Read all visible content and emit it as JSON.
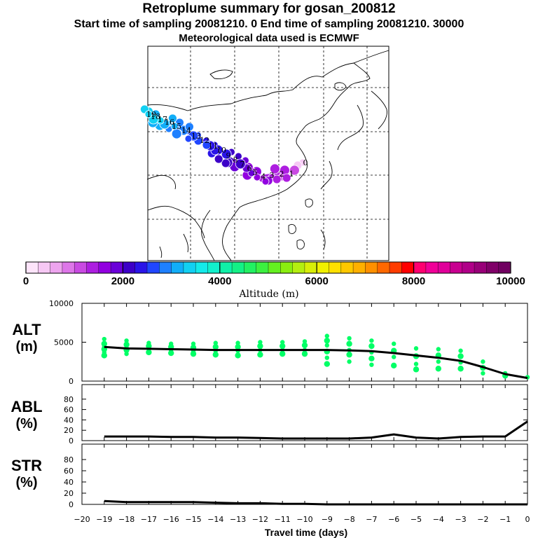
{
  "header": {
    "title": "Retroplume summary for gosan_200812",
    "sampling": "Start time of sampling 20081210.      0      End time of sampling 20081210. 30000",
    "met": "Meteorological data used is ECMWF"
  },
  "colorbar": {
    "label": "Altitude (m)",
    "ticks": [
      "0",
      "2000",
      "4000",
      "6000",
      "8000",
      "10000"
    ],
    "colors": [
      "#fde4fa",
      "#f6c8f4",
      "#eda4ee",
      "#dd76e8",
      "#c94ae2",
      "#ad1ee0",
      "#9200e0",
      "#6a00d8",
      "#3c00c8",
      "#2a14e8",
      "#2046ff",
      "#1e80ff",
      "#12aef8",
      "#12d0f2",
      "#14eaea",
      "#12f0cc",
      "#10f0a8",
      "#14f086",
      "#22f062",
      "#3cf040",
      "#64f020",
      "#8aee10",
      "#b4ee10",
      "#d8ee08",
      "#f0f000",
      "#ffe000",
      "#ffc800",
      "#ffb000",
      "#ff9000",
      "#ff6800",
      "#ff3c00",
      "#ff0000",
      "#ff0070",
      "#f00098",
      "#e0009a",
      "#c80090",
      "#b00088",
      "#980078",
      "#800068",
      "#700060"
    ],
    "nominal_color": "#00ff66"
  },
  "map": {
    "trajectory_labels": [
      "0",
      "1",
      "2",
      "3",
      "4",
      "5",
      "6",
      "7",
      "8",
      "9",
      "10",
      "11",
      "12",
      "13",
      "14",
      "15",
      "16",
      "17",
      "18",
      "19"
    ]
  },
  "chart_data": [
    {
      "type": "line",
      "name": "ALT",
      "ylabel": "ALT",
      "yunit": "(m)",
      "ylim": [
        0,
        10000
      ],
      "yticks": [
        "0",
        "5000",
        "10000"
      ],
      "x": [
        -19,
        -18,
        -17,
        -16,
        -15,
        -14,
        -13,
        -12,
        -11,
        -10,
        -9,
        -8,
        -7,
        -6,
        -5,
        -4,
        -3,
        -2,
        -1,
        0
      ],
      "series": [
        {
          "name": "mean altitude",
          "values": [
            4400,
            4200,
            4150,
            4100,
            4050,
            4000,
            4000,
            4000,
            4000,
            4000,
            4000,
            3950,
            3850,
            3600,
            3300,
            3000,
            2600,
            1800,
            900,
            400
          ]
        }
      ],
      "scatter_clusters": [
        {
          "x": -19,
          "values": [
            5400,
            4800,
            4400,
            4100,
            3700,
            3300
          ]
        },
        {
          "x": -18,
          "values": [
            5200,
            4700,
            4300,
            4000,
            3500
          ]
        },
        {
          "x": -17,
          "values": [
            4900,
            4500,
            4100,
            3700
          ]
        },
        {
          "x": -16,
          "values": [
            4800,
            4400,
            4000,
            3600
          ]
        },
        {
          "x": -15,
          "values": [
            4800,
            4300,
            3900,
            3500
          ]
        },
        {
          "x": -14,
          "values": [
            4900,
            4400,
            3900,
            3400
          ]
        },
        {
          "x": -13,
          "values": [
            4900,
            4400,
            3900,
            3300
          ]
        },
        {
          "x": -12,
          "values": [
            5000,
            4500,
            4000,
            3400
          ]
        },
        {
          "x": -11,
          "values": [
            5000,
            4500,
            4000,
            3500
          ]
        },
        {
          "x": -10,
          "values": [
            5100,
            4600,
            4000,
            3500
          ]
        },
        {
          "x": -9,
          "values": [
            5800,
            5200,
            4600,
            3800,
            3000,
            2200
          ]
        },
        {
          "x": -8,
          "values": [
            5500,
            4800,
            4000,
            3400,
            2500
          ]
        },
        {
          "x": -7,
          "values": [
            5200,
            4500,
            3700,
            2900,
            2100
          ]
        },
        {
          "x": -6,
          "values": [
            4800,
            3900,
            3100,
            2000
          ]
        },
        {
          "x": -5,
          "values": [
            4200,
            3200,
            2200,
            1500
          ]
        },
        {
          "x": -4,
          "values": [
            4100,
            3300,
            2500,
            1600
          ]
        },
        {
          "x": -3,
          "values": [
            3900,
            3200,
            2400,
            1600
          ]
        },
        {
          "x": -2,
          "values": [
            2500,
            1700,
            1000
          ]
        },
        {
          "x": -1,
          "values": [
            1000,
            700
          ]
        },
        {
          "x": 0,
          "values": [
            500
          ]
        }
      ]
    },
    {
      "type": "line",
      "name": "ABL",
      "ylabel": "ABL",
      "yunit": "(%)",
      "ylim": [
        0,
        100
      ],
      "yticks": [
        "0",
        "20",
        "40",
        "60",
        "80"
      ],
      "x": [
        -19,
        -18,
        -17,
        -16,
        -15,
        -14,
        -13,
        -12,
        -11,
        -10,
        -9,
        -8,
        -7,
        -6,
        -5,
        -4,
        -3,
        -2,
        -1,
        0
      ],
      "series": [
        {
          "name": "ABL fraction",
          "values": [
            8,
            8,
            8,
            7,
            7,
            6,
            6,
            5,
            4,
            4,
            4,
            4,
            6,
            12,
            6,
            4,
            7,
            8,
            8,
            37
          ]
        }
      ]
    },
    {
      "type": "line",
      "name": "STR",
      "ylabel": "STR",
      "yunit": "(%)",
      "ylim": [
        0,
        100
      ],
      "yticks": [
        "0",
        "20",
        "40",
        "60",
        "80"
      ],
      "x": [
        -19,
        -18,
        -17,
        -16,
        -15,
        -14,
        -13,
        -12,
        -11,
        -10,
        -9,
        -8,
        -7,
        -6,
        -5,
        -4,
        -3,
        -2,
        -1,
        0
      ],
      "series": [
        {
          "name": "stratospheric fraction",
          "values": [
            6,
            4,
            4,
            4,
            4,
            3,
            2,
            2,
            1,
            1,
            0,
            0,
            0,
            0,
            0,
            0,
            0,
            0,
            0,
            0
          ]
        }
      ]
    }
  ],
  "xaxis": {
    "label": "Travel time (days)",
    "tick_labels": [
      "−20",
      "−19",
      "−18",
      "−17",
      "−16",
      "−15",
      "−14",
      "−13",
      "−12",
      "−11",
      "−10",
      "−9",
      "−8",
      "−7",
      "−6",
      "−5",
      "−4",
      "−3",
      "−2",
      "−1",
      "0"
    ]
  }
}
